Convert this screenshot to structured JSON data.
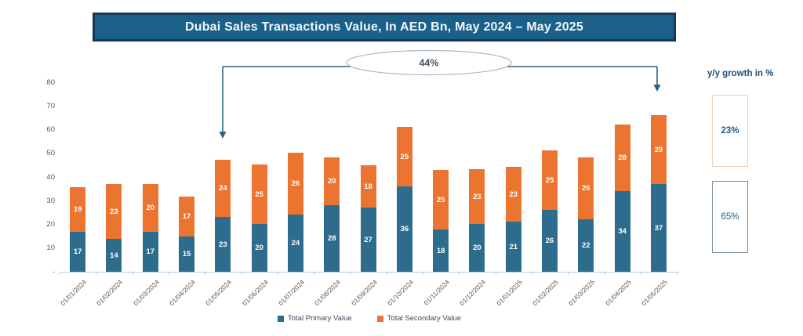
{
  "title": {
    "text": "Dubai Sales Transactions Value, In AED Bn, May 2024 – May 2025"
  },
  "annotation": {
    "label": "44%",
    "from_category": "01/05/2024",
    "to_category": "01/05/2025"
  },
  "growth_panel": {
    "heading": "y/y growth in %",
    "top_value": "23%",
    "bottom_value": "65%"
  },
  "colors": {
    "banner_bg": "#1a6089",
    "banner_border": "#15375c",
    "primary": "#2e6c8d",
    "secondary": "#ec7431",
    "axis_line": "#b4cfe4",
    "axis_text": "#595959",
    "arrow": "#2a6284",
    "ellipse_stroke": "#b0b7bd",
    "annotation_text": "#44546a",
    "growth_heading": "#1f4e79",
    "top_box_border": "#f0cdb0",
    "bottom_box_border": "#7d91a1",
    "pct_text": "#20608a",
    "legend_text": "#3b4a5a"
  },
  "chart_data": {
    "type": "bar",
    "stacked": true,
    "title": "Dubai Sales Transactions Value, In AED Bn, May 2024 – May 2025",
    "xlabel": "",
    "ylabel": "",
    "ylim": [
      0,
      80
    ],
    "ytick_step": 10,
    "ytick_labels": [
      "-",
      "10",
      "20",
      "30",
      "40",
      "50",
      "60",
      "70",
      "80"
    ],
    "grid": false,
    "legend_position": "bottom",
    "categories": [
      "01/01/2024",
      "01/02/2024",
      "01/03/2024",
      "01/04/2024",
      "01/05/2024",
      "01/06/2024",
      "01/07/2024",
      "01/08/2024",
      "01/09/2024",
      "01/10/2024",
      "01/11/2024",
      "01/12/2024",
      "01/01/2025",
      "01/02/2025",
      "01/03/2025",
      "01/04/2025",
      "01/05/2025"
    ],
    "series": [
      {
        "name": "Total Primary Value",
        "color": "#2e6c8d",
        "values": [
          17,
          14,
          17,
          15,
          23,
          20,
          24,
          28,
          27,
          36,
          18,
          20,
          21,
          26,
          22,
          34,
          37
        ]
      },
      {
        "name": "Total Secondary Value",
        "color": "#ec7431",
        "values": [
          19,
          23,
          20,
          17,
          24,
          25,
          26,
          20,
          18,
          25,
          25,
          23,
          23,
          25,
          26,
          28,
          29
        ]
      }
    ],
    "totals": [
      36,
      37,
      37,
      32,
      47,
      45,
      50,
      48,
      45,
      61,
      43,
      43,
      44,
      51,
      48,
      62,
      66
    ],
    "annotations": [
      {
        "text": "44%",
        "type": "growth-arrow",
        "from": "01/05/2024",
        "to": "01/05/2025"
      },
      {
        "text": "23%",
        "type": "yoy-growth-secondary"
      },
      {
        "text": "65%",
        "type": "yoy-growth-primary"
      }
    ]
  }
}
